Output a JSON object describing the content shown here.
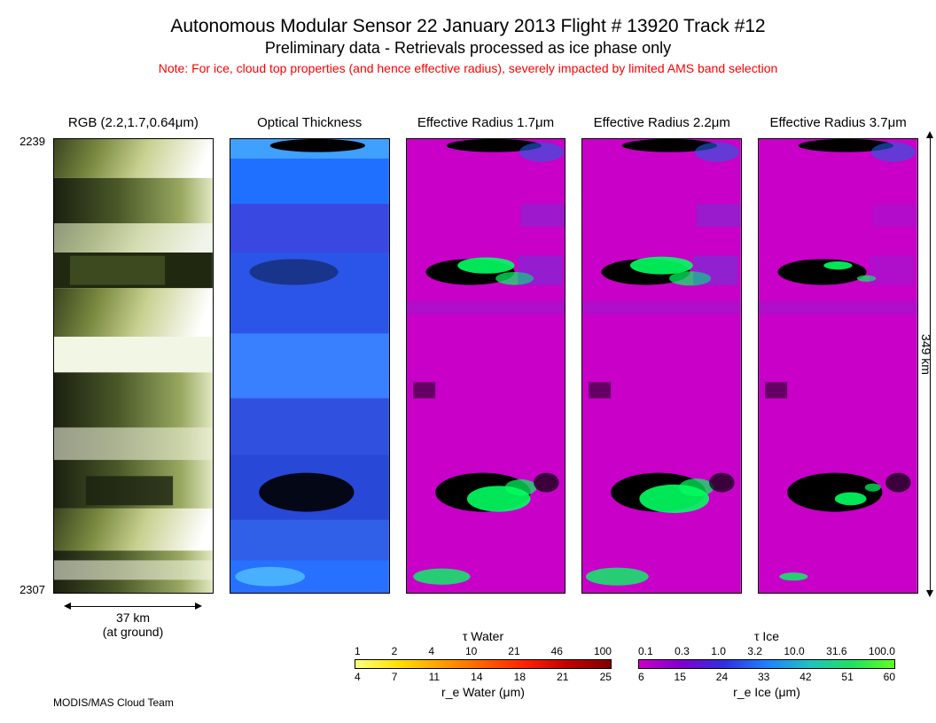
{
  "header": {
    "main": "Autonomous Modular Sensor  22 January 2013  Flight # 13920 Track #12",
    "sub": "Preliminary data - Retrievals processed as ice phase only",
    "note": "Note: For ice, cloud top properties (and hence effective radius), severely impacted by limited AMS band selection"
  },
  "yaxis": {
    "top": "2239",
    "bottom": "2307"
  },
  "distance_y": "349 km",
  "distance_x": "37 km",
  "distance_x_sub": "(at ground)",
  "credit": "MODIS/MAS Cloud Team",
  "panels": [
    {
      "title": "RGB (2.2,1.7,0.64μm)",
      "type": "rgb"
    },
    {
      "title": "Optical Thickness",
      "type": "opt"
    },
    {
      "title": "Effective Radius 1.7μm",
      "type": "rad"
    },
    {
      "title": "Effective Radius 2.2μm",
      "type": "rad"
    },
    {
      "title": "Effective Radius 3.7μm",
      "type": "rad"
    }
  ],
  "colors": {
    "rgb_palette": [
      "#2a3518",
      "#56612f",
      "#7e8a3d",
      "#a8b45a",
      "#cfd8a8",
      "#e8ecd2",
      "#ffffff",
      "#1a2010"
    ],
    "opt_gradient": [
      "#c800c8",
      "#7000d8",
      "#2030e0",
      "#3060ff",
      "#30a0ff",
      "#60d0ff"
    ],
    "rad_bg": "#c800c8",
    "rad_accent1": "#00ff60",
    "rad_accent2": "#2060e0",
    "rad_black": "#000000"
  },
  "cb_water": {
    "title_top": "τ Water",
    "title_bot": "r_e Water (μm)",
    "ticks_top": [
      "1",
      "2",
      "4",
      "10",
      "21",
      "46",
      "100"
    ],
    "ticks_bot": [
      "4",
      "7",
      "11",
      "14",
      "18",
      "21",
      "25"
    ],
    "gradient": [
      "#ffff80",
      "#ffe000",
      "#ffa000",
      "#ff6000",
      "#ff2000",
      "#c00000",
      "#800000"
    ]
  },
  "cb_ice": {
    "title_top": "τ Ice",
    "title_bot": "r_e Ice (μm)",
    "ticks_top": [
      "0.1",
      "0.3",
      "1.0",
      "3.2",
      "10.0",
      "31.6",
      "100.0"
    ],
    "ticks_bot": [
      "6",
      "15",
      "24",
      "33",
      "42",
      "51",
      "60"
    ],
    "gradient": [
      "#c800c8",
      "#8000d0",
      "#3030e0",
      "#2080ff",
      "#20c0c0",
      "#20e060",
      "#60ff20"
    ]
  }
}
